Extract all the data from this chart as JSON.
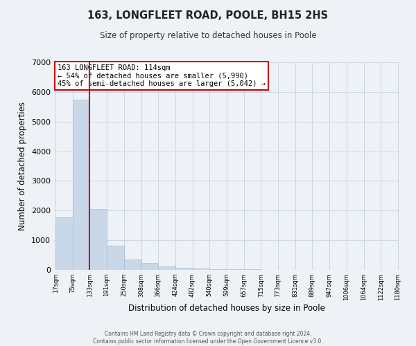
{
  "title": "163, LONGFLEET ROAD, POOLE, BH15 2HS",
  "subtitle": "Size of property relative to detached houses in Poole",
  "xlabel": "Distribution of detached houses by size in Poole",
  "ylabel": "Number of detached properties",
  "bar_color": "#c8d8e8",
  "bar_edge_color": "#a8c0d0",
  "bar_left_edges": [
    17,
    75,
    133,
    191,
    250,
    308,
    366,
    424,
    482,
    540,
    599,
    657,
    715,
    773,
    831,
    889,
    947,
    1006,
    1064,
    1122
  ],
  "bar_widths": [
    58,
    58,
    58,
    59,
    58,
    58,
    58,
    58,
    58,
    59,
    58,
    58,
    58,
    58,
    58,
    58,
    59,
    58,
    58,
    58
  ],
  "bar_heights": [
    1780,
    5750,
    2050,
    820,
    360,
    230,
    120,
    80,
    50,
    30,
    20,
    15,
    10,
    8,
    6,
    5,
    4,
    3,
    2,
    2
  ],
  "tick_labels": [
    "17sqm",
    "75sqm",
    "133sqm",
    "191sqm",
    "250sqm",
    "308sqm",
    "366sqm",
    "424sqm",
    "482sqm",
    "540sqm",
    "599sqm",
    "657sqm",
    "715sqm",
    "773sqm",
    "831sqm",
    "889sqm",
    "947sqm",
    "1006sqm",
    "1064sqm",
    "1122sqm",
    "1180sqm"
  ],
  "ylim": [
    0,
    7000
  ],
  "yticks": [
    0,
    1000,
    2000,
    3000,
    4000,
    5000,
    6000,
    7000
  ],
  "vline_x": 133,
  "vline_color": "#cc0000",
  "annotation_text": "163 LONGFLEET ROAD: 114sqm\n← 54% of detached houses are smaller (5,990)\n45% of semi-detached houses are larger (5,042) →",
  "annotation_box_color": "#ffffff",
  "annotation_box_edge": "#cc0000",
  "footer_line1": "Contains HM Land Registry data © Crown copyright and database right 2024.",
  "footer_line2": "Contains public sector information licensed under the Open Government Licence v3.0.",
  "grid_color": "#ccd8e4",
  "background_color": "#eef2f7",
  "xlim_left": 17,
  "xlim_right": 1180
}
